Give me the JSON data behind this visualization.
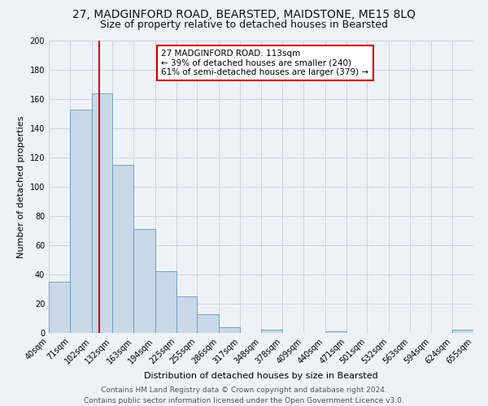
{
  "title": "27, MADGINFORD ROAD, BEARSTED, MAIDSTONE, ME15 8LQ",
  "subtitle": "Size of property relative to detached houses in Bearsted",
  "xlabel": "Distribution of detached houses by size in Bearsted",
  "ylabel": "Number of detached properties",
  "bins": [
    40,
    71,
    102,
    132,
    163,
    194,
    225,
    255,
    286,
    317,
    348,
    378,
    409,
    440,
    471,
    501,
    532,
    563,
    594,
    624,
    655
  ],
  "counts": [
    35,
    153,
    164,
    115,
    71,
    42,
    25,
    13,
    4,
    0,
    2,
    0,
    0,
    1,
    0,
    0,
    0,
    0,
    0,
    2
  ],
  "bar_color": "#c8d8e8",
  "bar_edge_color": "#6699bb",
  "vline_x": 113,
  "vline_color": "#cc0000",
  "annotation_text_line1": "27 MADGINFORD ROAD: 113sqm",
  "annotation_text_line2": "← 39% of detached houses are smaller (240)",
  "annotation_text_line3": "61% of semi-detached houses are larger (379) →",
  "annotation_box_color": "#ffffff",
  "annotation_box_edge_color": "#cc0000",
  "ylim": [
    0,
    200
  ],
  "yticks": [
    0,
    20,
    40,
    60,
    80,
    100,
    120,
    140,
    160,
    180,
    200
  ],
  "tick_labels": [
    "40sqm",
    "71sqm",
    "102sqm",
    "132sqm",
    "163sqm",
    "194sqm",
    "225sqm",
    "255sqm",
    "286sqm",
    "317sqm",
    "348sqm",
    "378sqm",
    "409sqm",
    "440sqm",
    "471sqm",
    "501sqm",
    "532sqm",
    "563sqm",
    "594sqm",
    "624sqm",
    "655sqm"
  ],
  "footer_line1": "Contains HM Land Registry data © Crown copyright and database right 2024.",
  "footer_line2": "Contains public sector information licensed under the Open Government Licence v3.0.",
  "bg_color": "#eef2f7",
  "grid_color": "#c5cfe0",
  "title_fontsize": 10,
  "subtitle_fontsize": 9,
  "axis_label_fontsize": 8,
  "tick_fontsize": 7,
  "annotation_fontsize": 7.5,
  "footer_fontsize": 6.5
}
